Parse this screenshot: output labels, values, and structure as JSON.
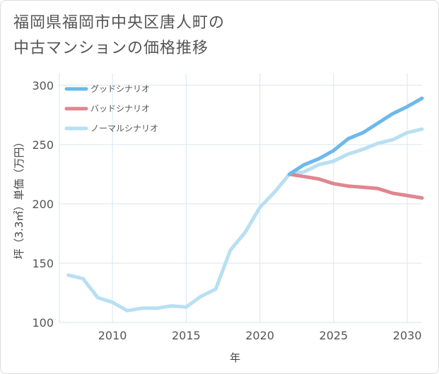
{
  "title_lines": [
    "福岡県福岡市中央区唐人町の",
    "中古マンションの価格推移"
  ],
  "chart_data": {
    "type": "line",
    "title": "福岡県福岡市中央区唐人町の中古マンションの価格推移",
    "xlabel": "年",
    "ylabel": "坪（3.3㎡）単価（万円）",
    "xlim": [
      2006.4,
      2031
    ],
    "ylim": [
      100,
      310
    ],
    "xticks": [
      2010,
      2015,
      2020,
      2025,
      2030
    ],
    "yticks": [
      100,
      150,
      200,
      250,
      300
    ],
    "grid": true,
    "legend_position": "top-left",
    "series": [
      {
        "name": "グッドシナリオ",
        "color": "#6db8ec",
        "x": [
          2022,
          2023,
          2024,
          2025,
          2026,
          2027,
          2028,
          2029,
          2030,
          2031
        ],
        "values": [
          225,
          233,
          238,
          245,
          255,
          260,
          268,
          276,
          282,
          289
        ]
      },
      {
        "name": "バッドシナリオ",
        "color": "#e0868f",
        "x": [
          2022,
          2023,
          2024,
          2025,
          2026,
          2027,
          2028,
          2029,
          2030,
          2031
        ],
        "values": [
          225,
          223,
          221,
          217,
          215,
          214,
          213,
          209,
          207,
          205
        ]
      },
      {
        "name": "ノーマルシナリオ",
        "color": "#b8dff2",
        "x": [
          2007,
          2008,
          2009,
          2010,
          2011,
          2012,
          2013,
          2014,
          2015,
          2016,
          2017,
          2018,
          2019,
          2020,
          2021,
          2022,
          2023,
          2024,
          2025,
          2026,
          2027,
          2028,
          2029,
          2030,
          2031
        ],
        "values": [
          140,
          137,
          121,
          117,
          110,
          112,
          112,
          114,
          113,
          122,
          128,
          161,
          176,
          197,
          210,
          225,
          227,
          233,
          236,
          242,
          246,
          251,
          254,
          260,
          263
        ]
      }
    ]
  }
}
